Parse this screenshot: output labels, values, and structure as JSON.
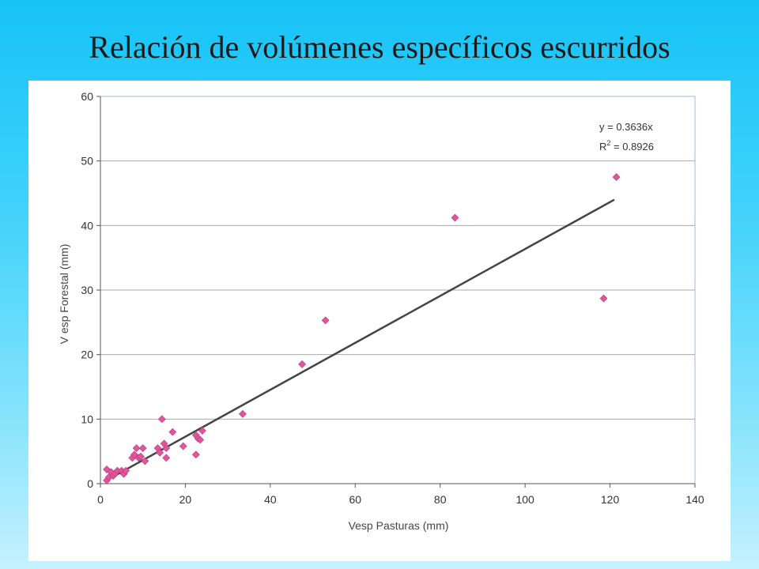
{
  "slide": {
    "title": "Relación de volúmenes específicos escurridos"
  },
  "colors": {
    "background_top": "#16c3f7",
    "background_bottom": "#c5f1fe",
    "points": "#e2559c",
    "trendline": "#444444",
    "gridlines": "#aaaaaa"
  },
  "chart_data": {
    "type": "scatter",
    "title": "",
    "xlabel": "Vesp Pasturas (mm)",
    "ylabel": "V esp Forestal (mm)",
    "xlim": [
      0,
      140
    ],
    "ylim": [
      0,
      60
    ],
    "x_ticks": [
      0,
      20,
      40,
      60,
      80,
      100,
      120,
      140
    ],
    "y_ticks": [
      0,
      10,
      20,
      30,
      40,
      50,
      60
    ],
    "grid": "horizontal",
    "legend": "none",
    "trendline": {
      "equation": "y = 0.3636x",
      "r2_prefix": "R",
      "r2_superscript": "2",
      "r2_value": " = 0.8926",
      "slope": 0.3636,
      "x_range": [
        1.5,
        121
      ]
    },
    "points": [
      {
        "x": 1.5,
        "y": 0.5
      },
      {
        "x": 1.5,
        "y": 2.2
      },
      {
        "x": 2,
        "y": 1.0
      },
      {
        "x": 2.5,
        "y": 1.8
      },
      {
        "x": 3,
        "y": 1.2
      },
      {
        "x": 3.5,
        "y": 1.6
      },
      {
        "x": 4,
        "y": 2.0
      },
      {
        "x": 5,
        "y": 2.0
      },
      {
        "x": 5.5,
        "y": 1.5
      },
      {
        "x": 6,
        "y": 2.0
      },
      {
        "x": 7.5,
        "y": 4.0
      },
      {
        "x": 8,
        "y": 4.5
      },
      {
        "x": 8.5,
        "y": 5.5
      },
      {
        "x": 9,
        "y": 4.0
      },
      {
        "x": 9.5,
        "y": 4.2
      },
      {
        "x": 10,
        "y": 5.5
      },
      {
        "x": 10.5,
        "y": 3.5
      },
      {
        "x": 13.5,
        "y": 5.5
      },
      {
        "x": 14,
        "y": 4.8
      },
      {
        "x": 14.5,
        "y": 10.0
      },
      {
        "x": 15,
        "y": 6.2
      },
      {
        "x": 15.5,
        "y": 4.0
      },
      {
        "x": 15.5,
        "y": 5.5
      },
      {
        "x": 17,
        "y": 8.0
      },
      {
        "x": 19.5,
        "y": 5.8
      },
      {
        "x": 22.5,
        "y": 4.5
      },
      {
        "x": 22.5,
        "y": 7.5
      },
      {
        "x": 23,
        "y": 7.0
      },
      {
        "x": 23.5,
        "y": 6.8
      },
      {
        "x": 24,
        "y": 8.2
      },
      {
        "x": 33.5,
        "y": 10.8
      },
      {
        "x": 47.5,
        "y": 18.5
      },
      {
        "x": 53,
        "y": 25.3
      },
      {
        "x": 83.5,
        "y": 41.2
      },
      {
        "x": 118.5,
        "y": 28.7
      },
      {
        "x": 121.5,
        "y": 47.5
      }
    ]
  }
}
